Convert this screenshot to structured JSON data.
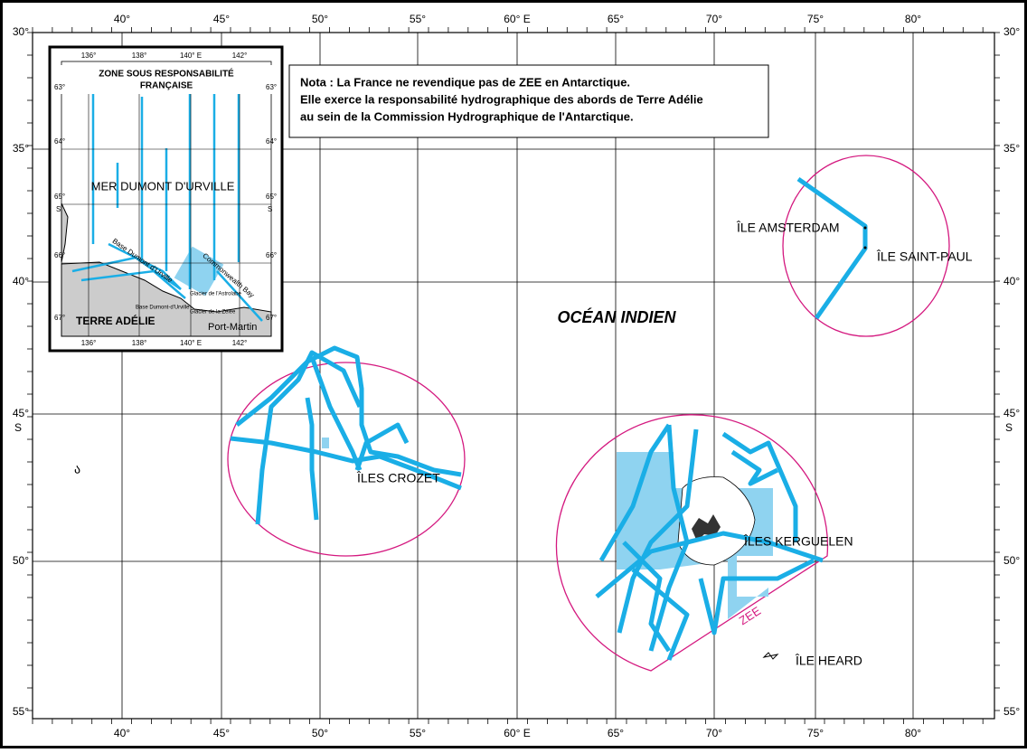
{
  "graticule": {
    "longitude_labels": [
      "40°",
      "45°",
      "50°",
      "55°",
      "60° E",
      "65°",
      "70°",
      "75°",
      "80°"
    ],
    "latitude_labels": [
      "30°",
      "35°",
      "40°",
      "45°",
      "50°",
      "55°"
    ],
    "hemisphere": "S"
  },
  "note": {
    "lines": [
      "Nota : La France ne revendique pas de ZEE en Antarctique.",
      "Elle exerce la responsabilité hydrographique des abords de Terre Adélie",
      "au sein de la Commission Hydrographique de l'Antarctique."
    ]
  },
  "labels": {
    "ocean": "OCÉAN INDIEN",
    "amsterdam": "ÎLE AMSTERDAM",
    "saint_paul": "ÎLE SAINT-PAUL",
    "crozet": "ÎLES CROZET",
    "kerguelen": "ÎLES KERGUELEN",
    "heard": "ÎLE HEARD",
    "zee": "ZEE"
  },
  "inset": {
    "title": [
      "ZONE SOUS RESPONSABILITÉ",
      "FRANÇAISE"
    ],
    "longitude_labels": [
      "136°",
      "138°",
      "140° E",
      "142°"
    ],
    "latitude_labels": [
      "63°",
      "64°",
      "65°",
      "66°",
      "67°"
    ],
    "hemisphere": "S",
    "sea": "MER DUMONT D'URVILLE",
    "land": "TERRE ADÉLIE",
    "port_martin": "Port-Martin",
    "base_route": "Base Dumont d'Urville",
    "bay": "Commonwealth Bay",
    "glacier_astrolabe": "Glacier de l'Astrolabe",
    "base": "Base Dumont-d'Urville",
    "glacier_zelee": "Glacier de la Zélée"
  }
}
